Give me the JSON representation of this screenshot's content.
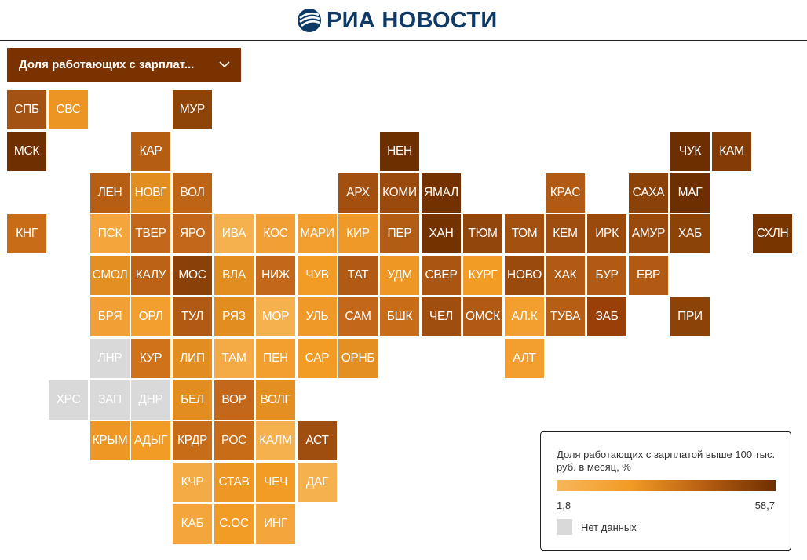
{
  "brand": {
    "name": "РИА НОВОСТИ",
    "logo_icon": "ria-globe-icon",
    "color": "#0f3a66"
  },
  "dropdown": {
    "selected": "Доля работающих с зарплат...",
    "icon": "chevron-down-icon",
    "background": "#7a3300"
  },
  "legend": {
    "title": "Доля работающих с зарплатой выше 100 тыс. руб. в месяц, %",
    "min_label": "1,8",
    "max_label": "58,7",
    "min_value": 1.8,
    "max_value": 58.7,
    "nodata_label": "Нет данных",
    "nodata_color": "#d9d9d9",
    "gradient": [
      "#f7b65a",
      "#f29b25",
      "#b85f12",
      "#6e2f00"
    ]
  },
  "regions": [
    {
      "code": "СПБ",
      "col": 0,
      "row": 0,
      "color": "#a35214"
    },
    {
      "code": "СВС",
      "col": 1,
      "row": 0,
      "color": "#ec9524"
    },
    {
      "code": "МУР",
      "col": 4,
      "row": 0,
      "color": "#8e4307"
    },
    {
      "code": "МСК",
      "col": 0,
      "row": 1,
      "color": "#6f2f00"
    },
    {
      "code": "КАР",
      "col": 3,
      "row": 1,
      "color": "#b45d13"
    },
    {
      "code": "НЕН",
      "col": 9,
      "row": 1,
      "color": "#6e2f00"
    },
    {
      "code": "ЧУК",
      "col": 16,
      "row": 1,
      "color": "#6e2f00"
    },
    {
      "code": "КАМ",
      "col": 17,
      "row": 1,
      "color": "#833c06"
    },
    {
      "code": "ЛЕН",
      "col": 2,
      "row": 2,
      "color": "#b65e13"
    },
    {
      "code": "НОВГ",
      "col": 3,
      "row": 2,
      "color": "#e28d20"
    },
    {
      "code": "ВОЛ",
      "col": 4,
      "row": 2,
      "color": "#bd6416"
    },
    {
      "code": "АРХ",
      "col": 8,
      "row": 2,
      "color": "#a34f10"
    },
    {
      "code": "КОМИ",
      "col": 9,
      "row": 2,
      "color": "#9b4a0d"
    },
    {
      "code": "ЯМАЛ",
      "col": 10,
      "row": 2,
      "color": "#733100"
    },
    {
      "code": "КРАС",
      "col": 13,
      "row": 2,
      "color": "#b05a13"
    },
    {
      "code": "САХА",
      "col": 15,
      "row": 2,
      "color": "#8b4208"
    },
    {
      "code": "МАГ",
      "col": 16,
      "row": 2,
      "color": "#6e2f00"
    },
    {
      "code": "КНГ",
      "col": 0,
      "row": 3,
      "color": "#c86c18"
    },
    {
      "code": "ПСК",
      "col": 2,
      "row": 3,
      "color": "#f4a53b"
    },
    {
      "code": "ТВЕР",
      "col": 3,
      "row": 3,
      "color": "#c3681a"
    },
    {
      "code": "ЯРО",
      "col": 4,
      "row": 3,
      "color": "#c3681a"
    },
    {
      "code": "ИВА",
      "col": 5,
      "row": 3,
      "color": "#f6b14f"
    },
    {
      "code": "КОС",
      "col": 6,
      "row": 3,
      "color": "#f0a035"
    },
    {
      "code": "МАРИ",
      "col": 7,
      "row": 3,
      "color": "#f29f2f"
    },
    {
      "code": "КИР",
      "col": 8,
      "row": 3,
      "color": "#ef9a28"
    },
    {
      "code": "ПЕР",
      "col": 9,
      "row": 3,
      "color": "#b35c14"
    },
    {
      "code": "ХАН",
      "col": 10,
      "row": 3,
      "color": "#743200"
    },
    {
      "code": "ТЮМ",
      "col": 11,
      "row": 3,
      "color": "#93460b"
    },
    {
      "code": "ТОМ",
      "col": 12,
      "row": 3,
      "color": "#a45011"
    },
    {
      "code": "КЕМ",
      "col": 13,
      "row": 3,
      "color": "#a04e10"
    },
    {
      "code": "ИРК",
      "col": 14,
      "row": 3,
      "color": "#9a4a0c"
    },
    {
      "code": "АМУР",
      "col": 15,
      "row": 3,
      "color": "#9a4a0c"
    },
    {
      "code": "ХАБ",
      "col": 16,
      "row": 3,
      "color": "#8c4308"
    },
    {
      "code": "СХЛН",
      "col": 18,
      "row": 3,
      "color": "#793500"
    },
    {
      "code": "СМОЛ",
      "col": 2,
      "row": 4,
      "color": "#e48f22"
    },
    {
      "code": "КАЛУ",
      "col": 3,
      "row": 4,
      "color": "#bb6216"
    },
    {
      "code": "МОС",
      "col": 4,
      "row": 4,
      "color": "#8a4108"
    },
    {
      "code": "ВЛА",
      "col": 5,
      "row": 4,
      "color": "#e28d20"
    },
    {
      "code": "НИЖ",
      "col": 6,
      "row": 4,
      "color": "#c3681a"
    },
    {
      "code": "ЧУВ",
      "col": 7,
      "row": 4,
      "color": "#f29b25"
    },
    {
      "code": "ТАТ",
      "col": 8,
      "row": 4,
      "color": "#b05a13"
    },
    {
      "code": "УДМ",
      "col": 9,
      "row": 4,
      "color": "#ee9725"
    },
    {
      "code": "СВЕР",
      "col": 10,
      "row": 4,
      "color": "#aa5512"
    },
    {
      "code": "КУРГ",
      "col": 11,
      "row": 4,
      "color": "#f29b25"
    },
    {
      "code": "НОВО",
      "col": 12,
      "row": 4,
      "color": "#9a4a0c"
    },
    {
      "code": "ХАК",
      "col": 13,
      "row": 4,
      "color": "#b05a13"
    },
    {
      "code": "БУР",
      "col": 14,
      "row": 4,
      "color": "#b05a13"
    },
    {
      "code": "ЕВР",
      "col": 15,
      "row": 4,
      "color": "#b05a13"
    },
    {
      "code": "БРЯ",
      "col": 2,
      "row": 5,
      "color": "#f0a035"
    },
    {
      "code": "ОРЛ",
      "col": 3,
      "row": 5,
      "color": "#f29f2f"
    },
    {
      "code": "ТУЛ",
      "col": 4,
      "row": 5,
      "color": "#b05a13"
    },
    {
      "code": "РЯЗ",
      "col": 5,
      "row": 5,
      "color": "#e28d20"
    },
    {
      "code": "МОР",
      "col": 6,
      "row": 5,
      "color": "#f6b14f"
    },
    {
      "code": "УЛЬ",
      "col": 7,
      "row": 5,
      "color": "#ef9a28"
    },
    {
      "code": "САМ",
      "col": 8,
      "row": 5,
      "color": "#c3681a"
    },
    {
      "code": "БШК",
      "col": 9,
      "row": 5,
      "color": "#c86c18"
    },
    {
      "code": "ЧЕЛ",
      "col": 10,
      "row": 5,
      "color": "#a04e10"
    },
    {
      "code": "ОМСК",
      "col": 11,
      "row": 5,
      "color": "#b05a13"
    },
    {
      "code": "АЛ.К",
      "col": 12,
      "row": 5,
      "color": "#f29f2f"
    },
    {
      "code": "ТУВА",
      "col": 13,
      "row": 5,
      "color": "#b65e13"
    },
    {
      "code": "ЗАБ",
      "col": 14,
      "row": 5,
      "color": "#993f08"
    },
    {
      "code": "ПРИ",
      "col": 16,
      "row": 5,
      "color": "#8c4308"
    },
    {
      "code": "ЛНР",
      "col": 2,
      "row": 6,
      "color": "#d9d9d9"
    },
    {
      "code": "КУР",
      "col": 3,
      "row": 6,
      "color": "#cf7219"
    },
    {
      "code": "ЛИП",
      "col": 4,
      "row": 6,
      "color": "#e28d20"
    },
    {
      "code": "ТАМ",
      "col": 5,
      "row": 6,
      "color": "#f4aa45"
    },
    {
      "code": "ПЕН",
      "col": 6,
      "row": 6,
      "color": "#f29f2f"
    },
    {
      "code": "САР",
      "col": 7,
      "row": 6,
      "color": "#f29b25"
    },
    {
      "code": "ОРНБ",
      "col": 8,
      "row": 6,
      "color": "#e48f22"
    },
    {
      "code": "АЛТ",
      "col": 12,
      "row": 6,
      "color": "#f29f2f"
    },
    {
      "code": "ХРС",
      "col": 1,
      "row": 7,
      "color": "#d9d9d9"
    },
    {
      "code": "ЗАП",
      "col": 2,
      "row": 7,
      "color": "#d9d9d9"
    },
    {
      "code": "ДНР",
      "col": 3,
      "row": 7,
      "color": "#d9d9d9"
    },
    {
      "code": "БЕЛ",
      "col": 4,
      "row": 7,
      "color": "#e28d20"
    },
    {
      "code": "ВОР",
      "col": 5,
      "row": 7,
      "color": "#c3681a"
    },
    {
      "code": "ВОЛГ",
      "col": 6,
      "row": 7,
      "color": "#e48f22"
    },
    {
      "code": "КРЫМ",
      "col": 2,
      "row": 8,
      "color": "#ee9725"
    },
    {
      "code": "АДЫГ",
      "col": 3,
      "row": 8,
      "color": "#f29b25"
    },
    {
      "code": "КРДР",
      "col": 4,
      "row": 8,
      "color": "#c86c18"
    },
    {
      "code": "РОС",
      "col": 5,
      "row": 8,
      "color": "#c86c18"
    },
    {
      "code": "КАЛМ",
      "col": 6,
      "row": 8,
      "color": "#f6b14f"
    },
    {
      "code": "АСТ",
      "col": 7,
      "row": 8,
      "color": "#a04e10"
    },
    {
      "code": "КЧР",
      "col": 4,
      "row": 9,
      "color": "#f4aa45"
    },
    {
      "code": "СТАВ",
      "col": 5,
      "row": 9,
      "color": "#ee9725"
    },
    {
      "code": "ЧЕЧ",
      "col": 6,
      "row": 9,
      "color": "#f29b25"
    },
    {
      "code": "ДАГ",
      "col": 7,
      "row": 9,
      "color": "#f6b14f"
    },
    {
      "code": "КАБ",
      "col": 4,
      "row": 10,
      "color": "#f4a53b"
    },
    {
      "code": "С.ОС",
      "col": 5,
      "row": 10,
      "color": "#f29b25"
    },
    {
      "code": "ИНГ",
      "col": 6,
      "row": 10,
      "color": "#f4a53b"
    }
  ]
}
